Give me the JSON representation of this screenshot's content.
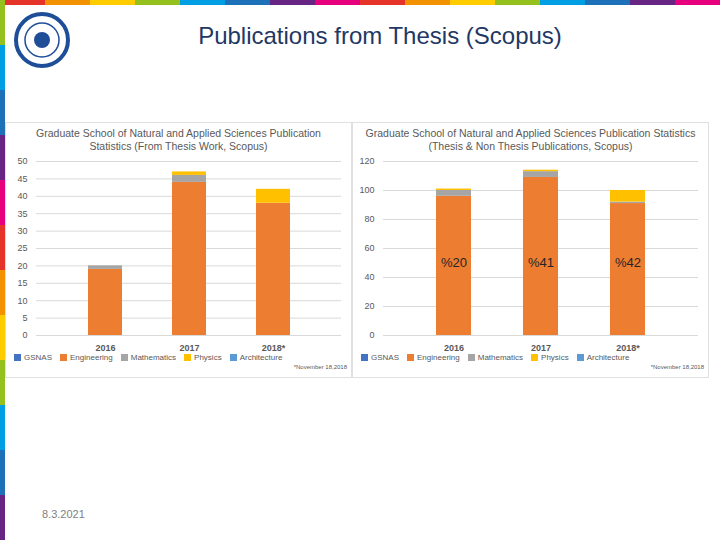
{
  "title": "Publications from Thesis (Scopus)",
  "date": "8.3.2021",
  "chart_data": [
    {
      "type": "bar",
      "stacked": true,
      "title": "Graduate School of Natural and Applied Sciences Publication Statistics (From Thesis Work, Scopus)",
      "categories": [
        "2016",
        "2017",
        "2018*"
      ],
      "series": [
        {
          "name": "GSNAS",
          "color": "#4472c4",
          "values": [
            0,
            0,
            0
          ]
        },
        {
          "name": "Engineering",
          "color": "#ed7d31",
          "values": [
            19,
            44,
            38
          ]
        },
        {
          "name": "Mathematics",
          "color": "#a5a5a5",
          "values": [
            1,
            2,
            0
          ]
        },
        {
          "name": "Physics",
          "color": "#ffc000",
          "values": [
            0,
            1,
            4
          ]
        },
        {
          "name": "Architecture",
          "color": "#5b9bd5",
          "values": [
            0,
            0,
            0
          ]
        }
      ],
      "ylim": [
        0,
        50
      ],
      "yticks": [
        0,
        5,
        10,
        15,
        20,
        25,
        30,
        35,
        40,
        45,
        50
      ],
      "grid": true,
      "legend": "bottom",
      "footnote": "*November 18,2018"
    },
    {
      "type": "bar",
      "stacked": true,
      "title": "Graduate School of Natural and Applied Sciences Publication Statistics (Thesis & Non Thesis Publications, Scopus)",
      "categories": [
        "2016",
        "2017",
        "2018*"
      ],
      "series": [
        {
          "name": "GSNAS",
          "color": "#4472c4",
          "values": [
            0,
            0,
            0
          ]
        },
        {
          "name": "Engineering",
          "color": "#ed7d31",
          "values": [
            96,
            109,
            91
          ]
        },
        {
          "name": "Mathematics",
          "color": "#a5a5a5",
          "values": [
            4,
            4,
            1
          ]
        },
        {
          "name": "Physics",
          "color": "#ffc000",
          "values": [
            1,
            1,
            8
          ]
        },
        {
          "name": "Architecture",
          "color": "#5b9bd5",
          "values": [
            0,
            0,
            0
          ]
        }
      ],
      "ylim": [
        0,
        120
      ],
      "yticks": [
        0,
        20,
        40,
        60,
        80,
        100,
        120
      ],
      "grid": true,
      "legend": "bottom",
      "annotations": [
        "%20",
        "%41",
        "%42"
      ],
      "footnote": "*November 18,2018"
    }
  ]
}
